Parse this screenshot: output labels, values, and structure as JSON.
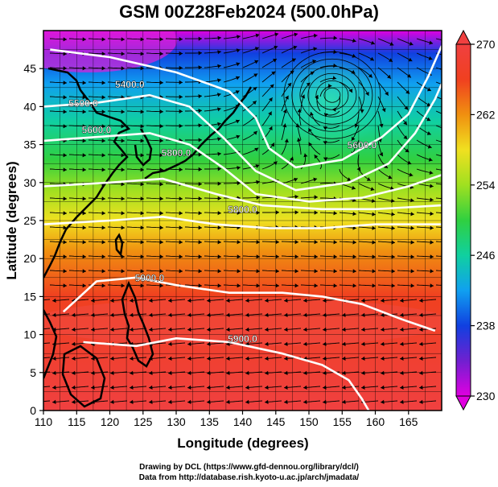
{
  "title": "GSM 00Z28Feb2024 (500.0hPa)",
  "map_data": {
    "region": {
      "lon_min": 110,
      "lon_max": 170,
      "lat_min": 0,
      "lat_max": 50
    },
    "xlabel": "Longitude (degrees)",
    "ylabel": "Latitude  (degrees)",
    "x_ticks": [
      "110",
      "115",
      "120",
      "125",
      "130",
      "135",
      "140",
      "145",
      "150",
      "155",
      "160",
      "165"
    ],
    "y_ticks": [
      "0",
      "5",
      "10",
      "15",
      "20",
      "25",
      "30",
      "35",
      "40",
      "45"
    ],
    "colorbar": {
      "min": 230,
      "max": 270,
      "tick_labels": [
        "230",
        "238",
        "246",
        "254",
        "262",
        "270"
      ],
      "stops": [
        "#e000e0",
        "#7020d0",
        "#1040e0",
        "#10a0f0",
        "#10d0a0",
        "#30d040",
        "#a0e020",
        "#f0e020",
        "#f09010",
        "#f04020",
        "#f04040"
      ]
    },
    "contours": [
      {
        "label": "5400.0",
        "points": [
          [
            111,
            47.5
          ],
          [
            120,
            46.5
          ],
          [
            130,
            44.5
          ],
          [
            138,
            42
          ],
          [
            142,
            38.5
          ],
          [
            144,
            34.5
          ],
          [
            148,
            32
          ],
          [
            155,
            33
          ],
          [
            161,
            36
          ],
          [
            165,
            39
          ],
          [
            168,
            44
          ],
          [
            170,
            48
          ]
        ]
      },
      {
        "label": "5500.0",
        "points": [
          [
            110,
            40
          ],
          [
            118,
            40.5
          ],
          [
            126,
            41.5
          ],
          [
            132,
            40
          ],
          [
            137,
            36
          ],
          [
            142,
            31.5
          ],
          [
            148,
            29
          ],
          [
            156,
            30
          ],
          [
            162,
            32.5
          ],
          [
            166,
            36.5
          ],
          [
            169,
            41
          ],
          [
            170,
            43
          ]
        ]
      },
      {
        "label": "5600.0",
        "points": [
          [
            110,
            35.5
          ],
          [
            118,
            36
          ],
          [
            126,
            36.5
          ],
          [
            132,
            35
          ],
          [
            137,
            32
          ],
          [
            142,
            28.5
          ],
          [
            150,
            27.5
          ],
          [
            158,
            28
          ],
          [
            165,
            29.5
          ],
          [
            170,
            31
          ]
        ]
      },
      {
        "label": "5700.0",
        "points": [
          [
            110,
            29.5
          ],
          [
            120,
            30
          ],
          [
            128,
            30.5
          ],
          [
            136,
            28.5
          ],
          [
            143,
            27
          ],
          [
            152,
            26.5
          ],
          [
            160,
            26.5
          ],
          [
            170,
            27
          ]
        ]
      },
      {
        "label": "5800.0",
        "points": [
          [
            110,
            24.5
          ],
          [
            120,
            25
          ],
          [
            128,
            25.5
          ],
          [
            136,
            24.5
          ],
          [
            144,
            24
          ],
          [
            152,
            24
          ],
          [
            160,
            24.5
          ],
          [
            170,
            24.5
          ]
        ]
      },
      {
        "label": "5900.0",
        "points": [
          [
            113,
            13
          ],
          [
            118,
            17
          ],
          [
            124,
            17.5
          ],
          [
            130,
            16.5
          ],
          [
            138,
            15.5
          ],
          [
            146,
            15.5
          ],
          [
            152,
            15
          ],
          [
            158,
            14
          ],
          [
            164,
            12
          ],
          [
            169,
            10.5
          ]
        ]
      },
      {
        "label": "5900.0",
        "points": [
          [
            116,
            9
          ],
          [
            124,
            8.5
          ],
          [
            130,
            9.5
          ],
          [
            138,
            9
          ],
          [
            146,
            7.5
          ],
          [
            152,
            6
          ],
          [
            156,
            4
          ],
          [
            158,
            1.5
          ],
          [
            159,
            0
          ]
        ]
      }
    ],
    "contour_labels": [
      {
        "text": "5400.0",
        "lon": 123,
        "lat": 42.5
      },
      {
        "text": "5500.0",
        "lon": 116,
        "lat": 40
      },
      {
        "text": "5600.0",
        "lon": 118,
        "lat": 36.5
      },
      {
        "text": "5800.0",
        "lon": 130,
        "lat": 33.5
      },
      {
        "text": "5600.0",
        "lon": 158,
        "lat": 34.5
      },
      {
        "text": "5800.0",
        "lon": 140,
        "lat": 26
      },
      {
        "text": "5900.0",
        "lon": 126,
        "lat": 17
      },
      {
        "text": "5900.0",
        "lon": 140,
        "lat": 9
      }
    ],
    "low_center": {
      "lon": 153.5,
      "lat": 41.5
    }
  },
  "credits": {
    "line1": "Drawing by DCL (https://www.gfd-dennou.org/library/dcl/)",
    "line2": "Data from http://database.rish.kyoto-u.ac.jp/arch/jmadata/"
  }
}
